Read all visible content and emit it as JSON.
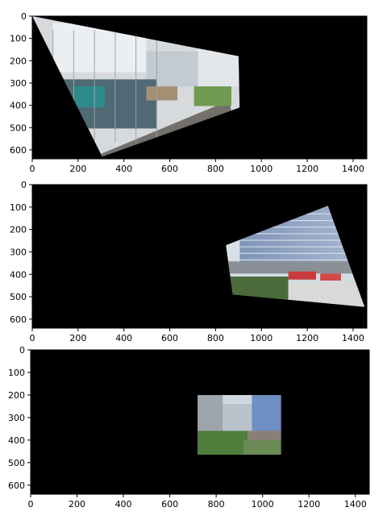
{
  "chart_data": [
    {
      "type": "image",
      "panel": "top",
      "xlim": [
        0,
        1460
      ],
      "ylim": [
        640,
        0
      ],
      "xticks": [
        "0",
        "200",
        "400",
        "600",
        "800",
        "1000",
        "1200",
        "1400"
      ],
      "yticks": [
        "0",
        "100",
        "200",
        "300",
        "400",
        "500",
        "600"
      ],
      "background": "#000000",
      "image_content": "warped photo of building walkway with glass facade and plants",
      "image_corners": [
        [
          0,
          0
        ],
        [
          900,
          180
        ],
        [
          905,
          410
        ],
        [
          305,
          630
        ]
      ]
    },
    {
      "type": "image",
      "panel": "middle",
      "xlim": [
        0,
        1460
      ],
      "ylim": [
        640,
        0
      ],
      "xticks": [
        "0",
        "200",
        "400",
        "600",
        "800",
        "1000",
        "1200",
        "1400"
      ],
      "yticks": [
        "0",
        "100",
        "200",
        "300",
        "400",
        "500",
        "600"
      ],
      "background": "#000000",
      "image_content": "warped photo of tall buildings and street with red buses",
      "image_corners": [
        [
          845,
          270
        ],
        [
          1290,
          95
        ],
        [
          1450,
          545
        ],
        [
          875,
          490
        ]
      ]
    },
    {
      "type": "image",
      "panel": "bottom",
      "xlim": [
        0,
        1460
      ],
      "ylim": [
        640,
        0
      ],
      "xticks": [
        "0",
        "200",
        "400",
        "600",
        "800",
        "1000",
        "1200",
        "1400"
      ],
      "yticks": [
        "0",
        "100",
        "200",
        "300",
        "400",
        "500",
        "600"
      ],
      "background": "#000000",
      "image_content": "stitched city photo with buildings, sky and trees",
      "image_corners": [
        [
          720,
          200
        ],
        [
          1080,
          200
        ],
        [
          1080,
          465
        ],
        [
          720,
          465
        ]
      ]
    }
  ]
}
